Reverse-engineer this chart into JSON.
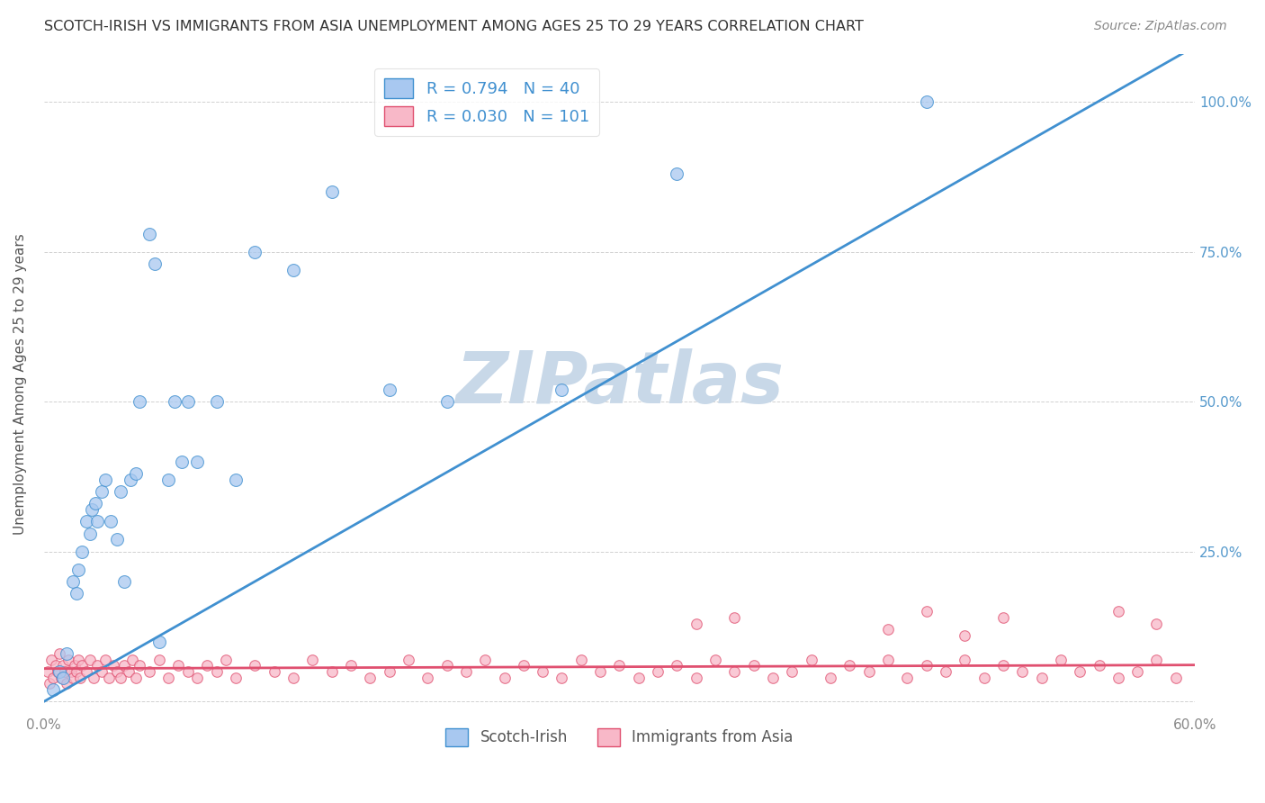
{
  "title": "SCOTCH-IRISH VS IMMIGRANTS FROM ASIA UNEMPLOYMENT AMONG AGES 25 TO 29 YEARS CORRELATION CHART",
  "source": "Source: ZipAtlas.com",
  "ylabel": "Unemployment Among Ages 25 to 29 years",
  "scotch_irish_R": 0.794,
  "scotch_irish_N": 40,
  "asia_R": 0.03,
  "asia_N": 101,
  "scotch_irish_color": "#A8C8F0",
  "asia_color": "#F8B8C8",
  "scotch_irish_line_color": "#4090D0",
  "asia_line_color": "#E05070",
  "watermark": "ZIPatlas",
  "watermark_color": "#C8D8E8",
  "xlim": [
    0.0,
    0.6
  ],
  "ylim": [
    -0.02,
    1.08
  ],
  "scotch_irish_x": [
    0.005,
    0.008,
    0.01,
    0.012,
    0.015,
    0.017,
    0.018,
    0.02,
    0.022,
    0.024,
    0.025,
    0.027,
    0.028,
    0.03,
    0.032,
    0.035,
    0.038,
    0.04,
    0.042,
    0.045,
    0.048,
    0.05,
    0.055,
    0.058,
    0.06,
    0.065,
    0.068,
    0.072,
    0.075,
    0.08,
    0.09,
    0.1,
    0.11,
    0.13,
    0.15,
    0.18,
    0.21,
    0.27,
    0.33,
    0.46
  ],
  "scotch_irish_y": [
    0.02,
    0.05,
    0.04,
    0.08,
    0.2,
    0.18,
    0.22,
    0.25,
    0.3,
    0.28,
    0.32,
    0.33,
    0.3,
    0.35,
    0.37,
    0.3,
    0.27,
    0.35,
    0.2,
    0.37,
    0.38,
    0.5,
    0.78,
    0.73,
    0.1,
    0.37,
    0.5,
    0.4,
    0.5,
    0.4,
    0.5,
    0.37,
    0.75,
    0.72,
    0.85,
    0.52,
    0.5,
    0.52,
    0.88,
    1.0
  ],
  "asia_x": [
    0.002,
    0.003,
    0.004,
    0.005,
    0.006,
    0.007,
    0.008,
    0.009,
    0.01,
    0.011,
    0.012,
    0.013,
    0.014,
    0.015,
    0.016,
    0.017,
    0.018,
    0.019,
    0.02,
    0.022,
    0.024,
    0.026,
    0.028,
    0.03,
    0.032,
    0.034,
    0.036,
    0.038,
    0.04,
    0.042,
    0.044,
    0.046,
    0.048,
    0.05,
    0.055,
    0.06,
    0.065,
    0.07,
    0.075,
    0.08,
    0.085,
    0.09,
    0.095,
    0.1,
    0.11,
    0.12,
    0.13,
    0.14,
    0.15,
    0.16,
    0.17,
    0.18,
    0.19,
    0.2,
    0.21,
    0.22,
    0.23,
    0.24,
    0.25,
    0.26,
    0.27,
    0.28,
    0.29,
    0.3,
    0.31,
    0.32,
    0.33,
    0.34,
    0.35,
    0.36,
    0.37,
    0.38,
    0.39,
    0.4,
    0.41,
    0.42,
    0.43,
    0.44,
    0.45,
    0.46,
    0.47,
    0.48,
    0.49,
    0.5,
    0.51,
    0.52,
    0.53,
    0.54,
    0.55,
    0.56,
    0.57,
    0.58,
    0.59,
    0.34,
    0.36,
    0.44,
    0.46,
    0.48,
    0.5,
    0.56,
    0.58
  ],
  "asia_y": [
    0.05,
    0.03,
    0.07,
    0.04,
    0.06,
    0.05,
    0.08,
    0.04,
    0.06,
    0.05,
    0.03,
    0.07,
    0.05,
    0.04,
    0.06,
    0.05,
    0.07,
    0.04,
    0.06,
    0.05,
    0.07,
    0.04,
    0.06,
    0.05,
    0.07,
    0.04,
    0.06,
    0.05,
    0.04,
    0.06,
    0.05,
    0.07,
    0.04,
    0.06,
    0.05,
    0.07,
    0.04,
    0.06,
    0.05,
    0.04,
    0.06,
    0.05,
    0.07,
    0.04,
    0.06,
    0.05,
    0.04,
    0.07,
    0.05,
    0.06,
    0.04,
    0.05,
    0.07,
    0.04,
    0.06,
    0.05,
    0.07,
    0.04,
    0.06,
    0.05,
    0.04,
    0.07,
    0.05,
    0.06,
    0.04,
    0.05,
    0.06,
    0.04,
    0.07,
    0.05,
    0.06,
    0.04,
    0.05,
    0.07,
    0.04,
    0.06,
    0.05,
    0.07,
    0.04,
    0.06,
    0.05,
    0.07,
    0.04,
    0.06,
    0.05,
    0.04,
    0.07,
    0.05,
    0.06,
    0.04,
    0.05,
    0.07,
    0.04,
    0.13,
    0.14,
    0.12,
    0.15,
    0.11,
    0.14,
    0.15,
    0.13
  ]
}
